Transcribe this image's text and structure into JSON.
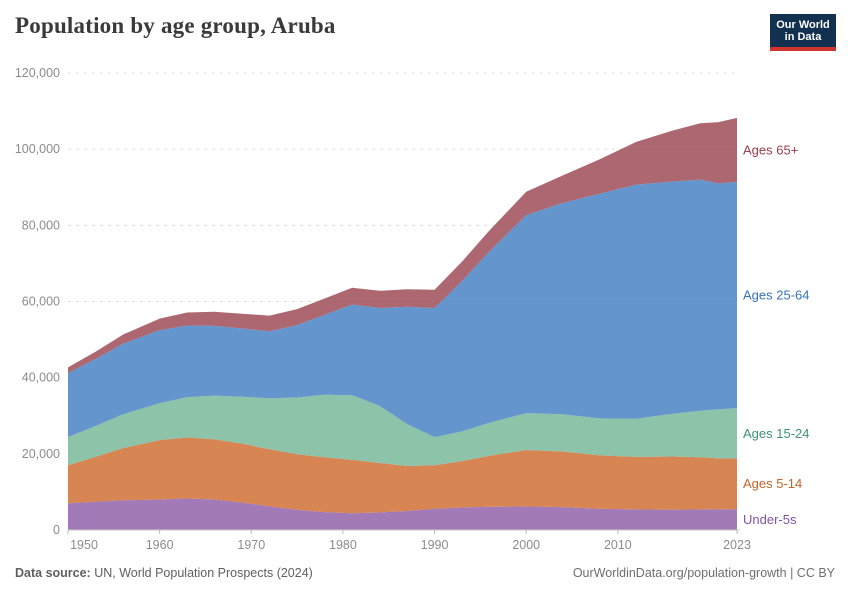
{
  "header": {
    "title": "Population by age group, Aruba",
    "logo_line1": "Our World",
    "logo_line2": "in Data"
  },
  "chart_data": {
    "type": "area",
    "stacked": true,
    "title": "Population by age group, Aruba",
    "xlabel": "",
    "ylabel": "",
    "xlim": [
      1950,
      2023
    ],
    "ylim": [
      0,
      120000
    ],
    "grid": "dashed-horizontal",
    "legend_position": "right-edge-labels",
    "x_ticks": [
      1950,
      1960,
      1970,
      1980,
      1990,
      2000,
      2010,
      2023
    ],
    "y_ticks": [
      0,
      20000,
      40000,
      60000,
      80000,
      100000,
      120000
    ],
    "x": [
      1950,
      1953,
      1956,
      1960,
      1963,
      1966,
      1969,
      1972,
      1975,
      1978,
      1981,
      1984,
      1987,
      1990,
      1993,
      1996,
      2000,
      2004,
      2008,
      2012,
      2016,
      2019,
      2021,
      2023
    ],
    "series": [
      {
        "name": "Under-5s",
        "fill": "#9668ae",
        "label_color": "#8053a3",
        "values": [
          7000,
          7400,
          7800,
          8000,
          8300,
          8000,
          7200,
          6200,
          5300,
          4700,
          4400,
          4600,
          5000,
          5600,
          5900,
          6100,
          6200,
          6000,
          5600,
          5400,
          5300,
          5400,
          5400,
          5500
        ]
      },
      {
        "name": "Ages 5-14",
        "fill": "#d0743b",
        "label_color": "#c4632a",
        "values": [
          10000,
          11800,
          13700,
          15600,
          16000,
          15800,
          15500,
          15000,
          14600,
          14400,
          14000,
          13000,
          11800,
          11400,
          12200,
          13400,
          14800,
          14600,
          14000,
          13800,
          14000,
          13700,
          13400,
          13300
        ]
      },
      {
        "name": "Ages 15-24",
        "fill": "#7cbb9d",
        "label_color": "#3e9377",
        "values": [
          7400,
          8100,
          8900,
          9700,
          10600,
          11500,
          12300,
          13400,
          14900,
          16400,
          17000,
          15000,
          11000,
          7400,
          7800,
          8700,
          9700,
          9800,
          9700,
          10000,
          11200,
          12200,
          12900,
          13200
        ]
      },
      {
        "name": "Ages 25-64",
        "fill": "#4f86c6",
        "label_color": "#3573b9",
        "values": [
          16800,
          17600,
          18500,
          19200,
          18800,
          18300,
          17900,
          17600,
          19000,
          21000,
          23800,
          25700,
          30800,
          33900,
          39500,
          45000,
          52000,
          55500,
          59000,
          61500,
          61000,
          60700,
          59300,
          59400
        ]
      },
      {
        "name": "Ages 65+",
        "fill": "#a1525d",
        "label_color": "#9a3e4d",
        "values": [
          1500,
          1900,
          2400,
          3000,
          3400,
          3700,
          3900,
          4100,
          4200,
          4300,
          4400,
          4500,
          4600,
          4800,
          5100,
          5500,
          6100,
          7200,
          9000,
          11200,
          13400,
          14800,
          16100,
          16800
        ]
      }
    ]
  },
  "footer": {
    "source_label": "Data source:",
    "source_text": " UN, World Population Prospects (2024)",
    "credit": "OurWorldinData.org/population-growth | CC BY"
  }
}
